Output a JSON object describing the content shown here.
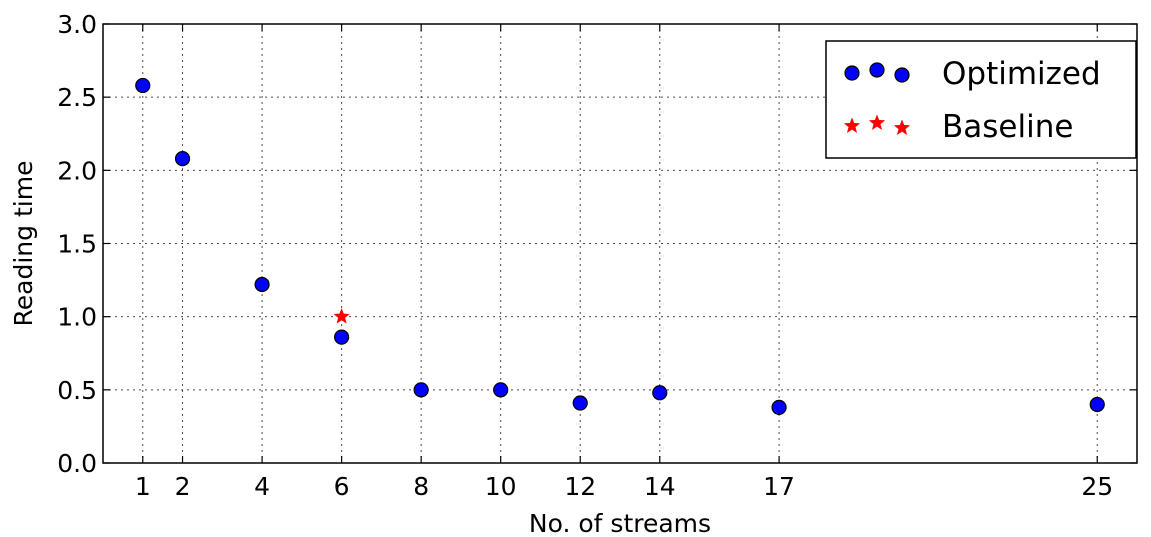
{
  "chart_data": {
    "type": "scatter",
    "xlabel": "No. of streams",
    "ylabel": "Reading time",
    "xlim": [
      0,
      26
    ],
    "ylim": [
      0,
      3.0
    ],
    "x_ticks": [
      1,
      2,
      4,
      6,
      8,
      10,
      12,
      14,
      17,
      25
    ],
    "y_ticks": [
      "0.0",
      "0.5",
      "1.0",
      "1.5",
      "2.0",
      "2.5",
      "3.0"
    ],
    "grid": true,
    "legend_position": "top-right",
    "series": [
      {
        "name": "Optimized",
        "marker": "circle",
        "color": "#0000ff",
        "points": [
          {
            "x": 1,
            "y": 2.58
          },
          {
            "x": 2,
            "y": 2.08
          },
          {
            "x": 4,
            "y": 1.22
          },
          {
            "x": 6,
            "y": 0.86
          },
          {
            "x": 8,
            "y": 0.5
          },
          {
            "x": 10,
            "y": 0.5
          },
          {
            "x": 12,
            "y": 0.41
          },
          {
            "x": 14,
            "y": 0.48
          },
          {
            "x": 17,
            "y": 0.38
          },
          {
            "x": 25,
            "y": 0.4
          }
        ]
      },
      {
        "name": "Baseline",
        "marker": "star",
        "color": "#ff0000",
        "points": [
          {
            "x": 6,
            "y": 1.0
          }
        ]
      }
    ]
  }
}
